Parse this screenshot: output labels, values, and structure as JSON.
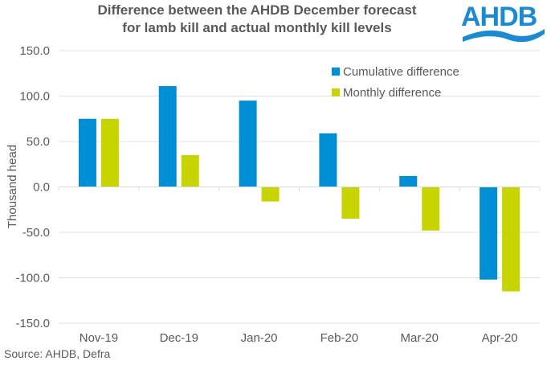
{
  "header": {
    "title_line1": "Difference between the AHDB December forecast",
    "title_line2": "for lamb kill and actual monthly kill levels",
    "logo_text": "AHDB"
  },
  "footer": {
    "source": "Source: AHDB, Defra"
  },
  "colors": {
    "cumulative": "#008fd5",
    "monthly": "#c8d400",
    "grid": "#e0e0e0",
    "text": "#595959"
  },
  "chart_data": {
    "type": "bar",
    "title": "Difference between the AHDB December forecast for lamb kill and actual monthly kill levels",
    "xlabel": "",
    "ylabel": "Thousand  head",
    "categories": [
      "Nov-19",
      "Dec-19",
      "Jan-20",
      "Feb-20",
      "Mar-20",
      "Apr-20"
    ],
    "series": [
      {
        "name": "Cumulative difference",
        "values": [
          75,
          111,
          95,
          59,
          12,
          -102
        ]
      },
      {
        "name": "Monthly difference",
        "values": [
          75,
          35,
          -16,
          -35,
          -48,
          -115
        ]
      }
    ],
    "ylim": [
      -150,
      150
    ],
    "yticks": [
      150,
      100,
      50,
      0,
      -50,
      -100,
      -150
    ],
    "ytick_labels": [
      "150.0",
      "100.0",
      "50.0",
      "0.0",
      "-50.0",
      "-100.0",
      "-150.0"
    ],
    "grid": true,
    "legend": "top-right"
  }
}
